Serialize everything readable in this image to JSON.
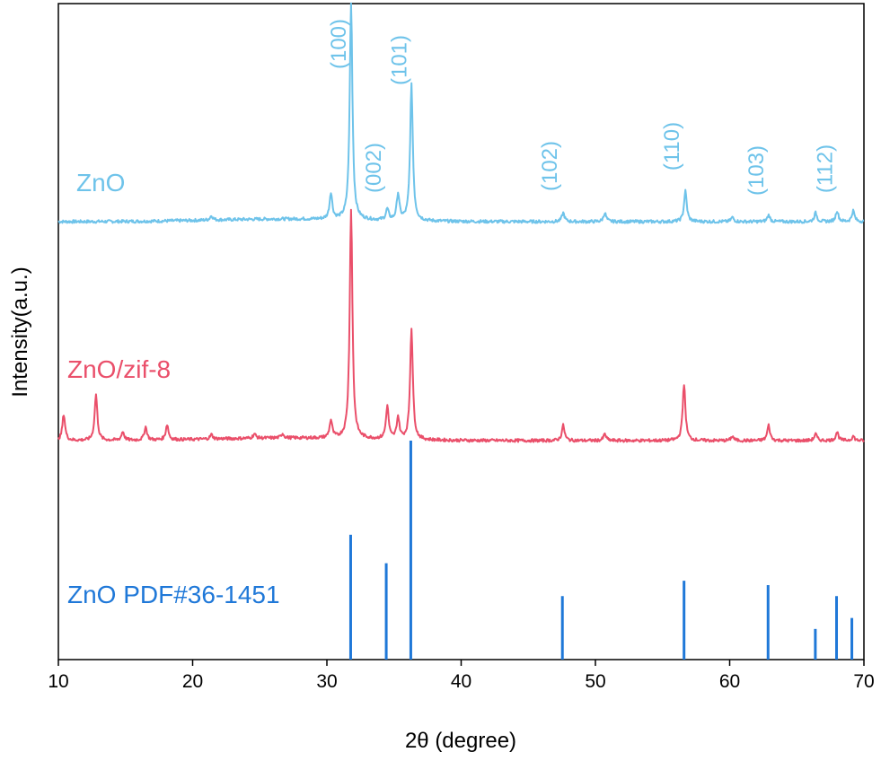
{
  "chart_data": {
    "type": "line",
    "xlabel": "2θ (degree)",
    "ylabel": "Intensity(a.u.)",
    "xlim": [
      10,
      70
    ],
    "ylim": [
      0,
      3
    ],
    "x_ticks": [
      "10",
      "20",
      "30",
      "40",
      "50",
      "60",
      "70"
    ],
    "grid": false,
    "colors": {
      "zno": "#6ec3ea",
      "zif": "#ea4f6a",
      "pdf": "#1f78d8"
    },
    "series": [
      {
        "name": "ZnO",
        "color": "#6ec3ea",
        "baseline": 2.0,
        "peaks": [
          {
            "x": 21.4,
            "h": 0.02
          },
          {
            "x": 30.3,
            "h": 0.12
          },
          {
            "x": 31.8,
            "h": 0.99
          },
          {
            "x": 34.5,
            "h": 0.05
          },
          {
            "x": 35.3,
            "h": 0.12
          },
          {
            "x": 36.3,
            "h": 0.62
          },
          {
            "x": 47.6,
            "h": 0.04
          },
          {
            "x": 50.7,
            "h": 0.04
          },
          {
            "x": 56.7,
            "h": 0.14
          },
          {
            "x": 60.2,
            "h": 0.02
          },
          {
            "x": 62.9,
            "h": 0.03
          },
          {
            "x": 66.4,
            "h": 0.04
          },
          {
            "x": 68.0,
            "h": 0.05
          },
          {
            "x": 69.2,
            "h": 0.05
          }
        ]
      },
      {
        "name": "ZnO/zif-8",
        "color": "#ea4f6a",
        "baseline": 1.0,
        "peaks": [
          {
            "x": 10.4,
            "h": 0.12
          },
          {
            "x": 12.8,
            "h": 0.21
          },
          {
            "x": 14.8,
            "h": 0.04
          },
          {
            "x": 16.5,
            "h": 0.06
          },
          {
            "x": 18.1,
            "h": 0.07
          },
          {
            "x": 21.4,
            "h": 0.02
          },
          {
            "x": 24.6,
            "h": 0.02
          },
          {
            "x": 26.7,
            "h": 0.02
          },
          {
            "x": 30.3,
            "h": 0.08
          },
          {
            "x": 31.8,
            "h": 1.05
          },
          {
            "x": 34.5,
            "h": 0.15
          },
          {
            "x": 35.3,
            "h": 0.1
          },
          {
            "x": 36.3,
            "h": 0.51
          },
          {
            "x": 47.6,
            "h": 0.07
          },
          {
            "x": 50.7,
            "h": 0.03
          },
          {
            "x": 56.6,
            "h": 0.26
          },
          {
            "x": 60.2,
            "h": 0.02
          },
          {
            "x": 62.9,
            "h": 0.07
          },
          {
            "x": 66.4,
            "h": 0.03
          },
          {
            "x": 68.0,
            "h": 0.04
          },
          {
            "x": 69.2,
            "h": 0.02
          }
        ]
      },
      {
        "name": "ZnO PDF#36-1451",
        "color": "#1f78d8",
        "style": "sticks",
        "baseline": 0.0,
        "x": [
          31.77,
          34.42,
          36.25,
          47.54,
          56.6,
          62.86,
          66.38,
          67.96,
          69.1
        ],
        "values": [
          0.57,
          0.44,
          1.0,
          0.29,
          0.36,
          0.34,
          0.14,
          0.29,
          0.19
        ]
      }
    ],
    "annotations": [
      {
        "text": "(100)",
        "x": 31.8
      },
      {
        "text": "(002)",
        "x": 34.4
      },
      {
        "text": "(101)",
        "x": 36.3
      },
      {
        "text": "(102)",
        "x": 47.5
      },
      {
        "text": "(110)",
        "x": 56.6
      },
      {
        "text": "(103)",
        "x": 62.9
      },
      {
        "text": "(112)",
        "x": 68.0
      }
    ]
  }
}
